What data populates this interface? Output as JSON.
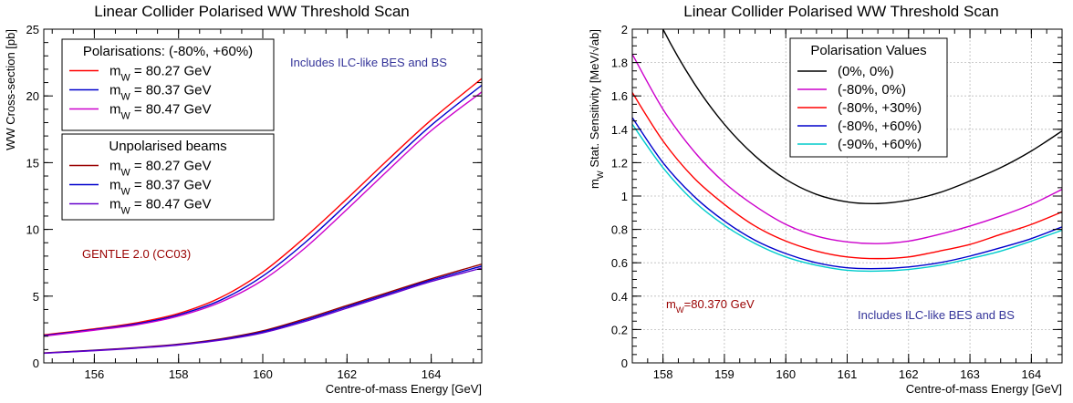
{
  "chart_data": [
    {
      "type": "line",
      "title": "Linear Collider Polarised WW Threshold Scan",
      "xlabel": "Centre-of-mass Energy [GeV]",
      "ylabel": "WW Cross-section [pb]",
      "xlim": [
        154.8,
        165.2
      ],
      "ylim": [
        0,
        25
      ],
      "x_ticks": [
        156,
        158,
        160,
        162,
        164
      ],
      "y_ticks": [
        0,
        5,
        10,
        15,
        20,
        25
      ],
      "grid": false,
      "x": [
        154.8,
        156,
        157,
        158,
        159,
        160,
        161,
        162,
        163,
        164,
        165.2
      ],
      "series": [
        {
          "name": "m_W = 80.27 GeV",
          "group": "pol",
          "color": "#ff0000",
          "values": [
            2.1,
            2.55,
            3.0,
            3.7,
            4.9,
            6.8,
            9.4,
            12.3,
            15.3,
            18.2,
            21.3
          ]
        },
        {
          "name": "m_W = 80.37 GeV",
          "group": "pol",
          "color": "#0000cc",
          "values": [
            2.05,
            2.5,
            2.92,
            3.6,
            4.7,
            6.5,
            9.0,
            11.9,
            14.9,
            17.8,
            20.8
          ]
        },
        {
          "name": "m_W = 80.47 GeV",
          "group": "pol",
          "color": "#cc00cc",
          "values": [
            2.0,
            2.45,
            2.85,
            3.5,
            4.55,
            6.2,
            8.6,
            11.5,
            14.5,
            17.4,
            20.3
          ]
        },
        {
          "name": "m_W = 80.27 GeV",
          "group": "unpol",
          "color": "#990000",
          "values": [
            0.75,
            0.95,
            1.15,
            1.4,
            1.8,
            2.4,
            3.3,
            4.3,
            5.3,
            6.3,
            7.4
          ]
        },
        {
          "name": "m_W = 80.37 GeV",
          "group": "unpol",
          "color": "#0000cc",
          "values": [
            0.73,
            0.93,
            1.12,
            1.37,
            1.75,
            2.33,
            3.2,
            4.2,
            5.2,
            6.2,
            7.25
          ]
        },
        {
          "name": "m_W = 80.47 GeV",
          "group": "unpol",
          "color": "#6600cc",
          "values": [
            0.72,
            0.91,
            1.1,
            1.34,
            1.7,
            2.25,
            3.1,
            4.1,
            5.1,
            6.1,
            7.1
          ]
        }
      ],
      "legend": [
        {
          "header": "Polarisations: (-80%, +60%)",
          "entries": [
            "m_W = 80.27 GeV",
            "m_W = 80.37 GeV",
            "m_W = 80.47 GeV"
          ],
          "colors": [
            "#ff0000",
            "#0000cc",
            "#cc00cc"
          ]
        },
        {
          "header": "Unpolarised beams",
          "entries": [
            "m_W = 80.27 GeV",
            "m_W = 80.37 GeV",
            "m_W = 80.47 GeV"
          ],
          "colors": [
            "#990000",
            "#0000cc",
            "#6600cc"
          ]
        }
      ],
      "legend_placement": "top-left",
      "annotations": [
        {
          "text": "Includes ILC-like BES and BS",
          "color": "#333399"
        },
        {
          "text": "GENTLE 2.0 (CC03)",
          "color": "#990000"
        }
      ]
    },
    {
      "type": "line",
      "title": "Linear Collider Polarised WW Threshold Scan",
      "xlabel": "Centre-of-mass Energy [GeV]",
      "ylabel": "m_W Stat. Sensitivity [MeV/√ab]",
      "xlim": [
        157.5,
        164.5
      ],
      "ylim": [
        0,
        2
      ],
      "x_ticks": [
        158,
        159,
        160,
        161,
        162,
        163,
        164
      ],
      "y_ticks": [
        0,
        0.2,
        0.4,
        0.6,
        0.8,
        1,
        1.2,
        1.4,
        1.6,
        1.8,
        2
      ],
      "y_tick_labels": [
        "0",
        "0.2",
        "0.4",
        "0.6",
        "0.8",
        "1",
        "1.2",
        "1.4",
        "1.6",
        "1.8",
        "2"
      ],
      "grid": true,
      "x": [
        157.5,
        158,
        158.5,
        159,
        159.5,
        160,
        160.5,
        161,
        161.5,
        162,
        162.5,
        163,
        163.5,
        164,
        164.5
      ],
      "series": [
        {
          "name": "(0%, 0%)",
          "color": "#000000",
          "values": [
            2.4,
            2.0,
            1.68,
            1.43,
            1.24,
            1.1,
            1.01,
            0.965,
            0.955,
            0.975,
            1.02,
            1.09,
            1.17,
            1.27,
            1.39
          ]
        },
        {
          "name": "(-80%, 0%)",
          "color": "#cc00cc",
          "values": [
            1.85,
            1.52,
            1.27,
            1.08,
            0.94,
            0.83,
            0.76,
            0.725,
            0.715,
            0.73,
            0.77,
            0.82,
            0.88,
            0.95,
            1.04
          ]
        },
        {
          "name": "(-80%, +30%)",
          "color": "#ff0000",
          "values": [
            1.62,
            1.33,
            1.11,
            0.95,
            0.82,
            0.73,
            0.67,
            0.635,
            0.625,
            0.635,
            0.67,
            0.71,
            0.77,
            0.83,
            0.905
          ]
        },
        {
          "name": "(-80%, +60%)",
          "color": "#0000cc",
          "values": [
            1.47,
            1.2,
            1.0,
            0.85,
            0.735,
            0.655,
            0.6,
            0.57,
            0.565,
            0.575,
            0.6,
            0.64,
            0.69,
            0.745,
            0.815
          ]
        },
        {
          "name": "(-90%, +60%)",
          "color": "#00cccc",
          "values": [
            1.43,
            1.17,
            0.97,
            0.825,
            0.715,
            0.635,
            0.585,
            0.555,
            0.55,
            0.56,
            0.585,
            0.625,
            0.67,
            0.73,
            0.795
          ]
        }
      ],
      "legend": [
        {
          "header": "Polarisation Values",
          "entries": [
            "(0%, 0%)",
            "(-80%, 0%)",
            "(-80%, +30%)",
            "(-80%, +60%)",
            "(-90%, +60%)"
          ],
          "colors": [
            "#000000",
            "#cc00cc",
            "#ff0000",
            "#0000cc",
            "#00cccc"
          ]
        }
      ],
      "legend_placement": "top-center",
      "annotations": [
        {
          "text": "m_W=80.370 GeV",
          "color": "#990000"
        },
        {
          "text": "Includes ILC-like BES and BS",
          "color": "#333399"
        }
      ]
    }
  ]
}
